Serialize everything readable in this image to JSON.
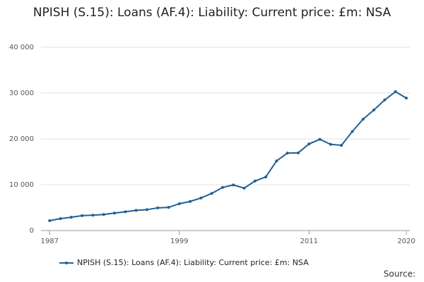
{
  "chart_data": {
    "type": "line",
    "title": "NPISH (S.15): Loans (AF.4): Liability: Current price: £m: NSA",
    "x": [
      1987,
      1988,
      1989,
      1990,
      1991,
      1992,
      1993,
      1994,
      1995,
      1996,
      1997,
      1998,
      1999,
      2000,
      2001,
      2002,
      2003,
      2004,
      2005,
      2006,
      2007,
      2008,
      2009,
      2010,
      2011,
      2012,
      2013,
      2014,
      2015,
      2016,
      2017,
      2018,
      2019,
      2020
    ],
    "series": [
      {
        "name": "NPISH (S.15): Loans (AF.4): Liability: Current price: £m: NSA",
        "color": "#206095",
        "values": [
          2150,
          2600,
          2900,
          3250,
          3350,
          3500,
          3800,
          4100,
          4400,
          4550,
          4950,
          5050,
          5850,
          6350,
          7100,
          8100,
          9400,
          9950,
          9250,
          10800,
          11700,
          15200,
          16900,
          16950,
          18900,
          19900,
          18800,
          18600,
          21600,
          24300,
          26300,
          28500,
          30300,
          28900
        ]
      }
    ],
    "xlim": [
      1986.2,
      2020.33
    ],
    "xticks": [
      1987,
      1999,
      2011,
      2020
    ],
    "ylim": [
      0,
      40000
    ],
    "yticks": [
      0,
      {
        "value": 10000,
        "label": "10 000"
      },
      {
        "value": 20000,
        "label": "20 000"
      },
      {
        "value": 30000,
        "label": "30 000"
      },
      {
        "value": 40000,
        "label": "40 000"
      }
    ],
    "grid": true,
    "source": "Source:"
  }
}
